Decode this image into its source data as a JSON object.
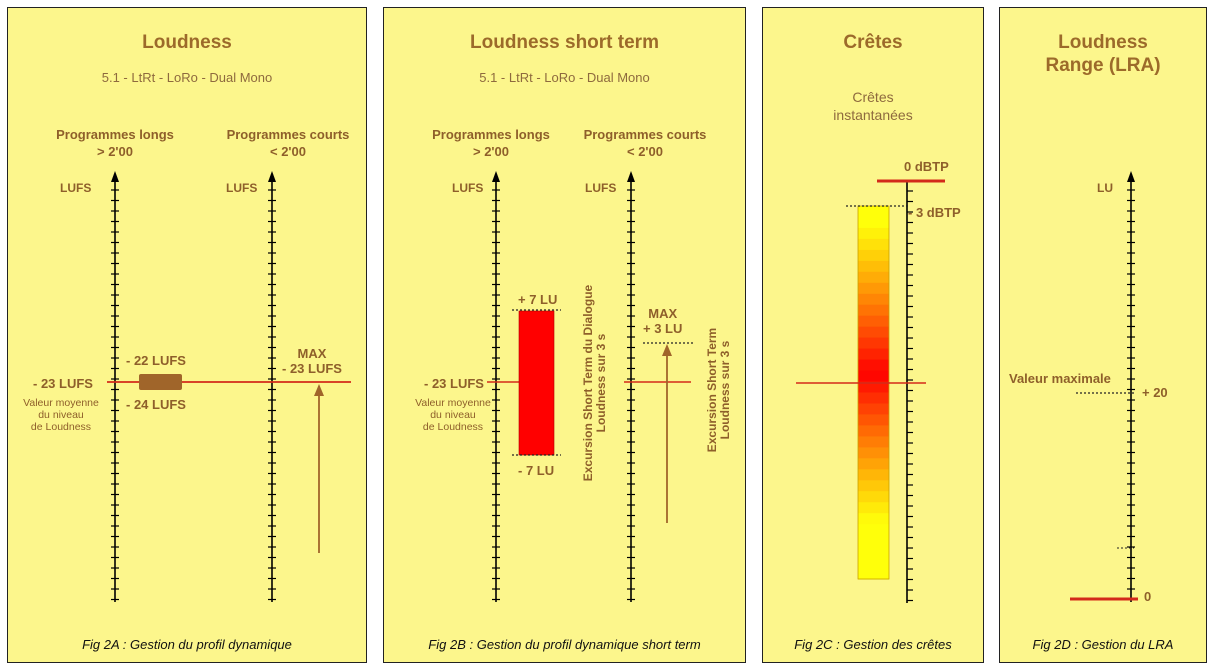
{
  "colors": {
    "panel": "#fcf68c",
    "brown": "#9c6a2a",
    "red": "#e0000e",
    "marker": "#a0652a"
  },
  "fig_a": {
    "title": "Loudness",
    "subtitle": "5.1 - LtRt - LoRo - Dual Mono",
    "col1_header": "Programmes longs\n> 2'00",
    "col2_header": "Programmes courts\n< 2'00",
    "unit1": "LUFS",
    "unit2": "LUFS",
    "target_label": "- 23 LUFS",
    "target_note": "Valeur moyenne\ndu niveau\nde Loudness",
    "upper_label": "- 22 LUFS",
    "lower_label": "- 24 LUFS",
    "max_label": "MAX\n- 23 LUFS",
    "caption": "Fig 2A : Gestion du profil dynamique"
  },
  "fig_b": {
    "title": "Loudness short term",
    "subtitle": "5.1 - LtRt - LoRo - Dual Mono",
    "col1_header": "Programmes longs\n> 2'00",
    "col2_header": "Programmes courts\n< 2'00",
    "unit1": "LUFS",
    "unit2": "LUFS",
    "target_label": "- 23 LUFS",
    "target_note": "Valeur moyenne\ndu niveau\nde Loudness",
    "upper_label": "+ 7 LU",
    "lower_label": "- 7 LU",
    "dialogue_text": "Excursion Short Term du Dialogue\nLoudness sur 3 s",
    "max_label": "MAX\n+ 3 LU",
    "short_text": "Excursion Short Term\nLoudness sur 3 s",
    "caption": "Fig 2B : Gestion du profil dynamique short term"
  },
  "fig_c": {
    "title": "Crêtes",
    "subtitle": "Crêtes\ninstantanées",
    "top_label": "0 dBTP",
    "ref_label": "- 3 dBTP",
    "caption": "Fig 2C : Gestion des crêtes"
  },
  "fig_d": {
    "title": "Loudness\nRange (LRA)",
    "unit": "LU",
    "max_text": "Valeur maximale",
    "max_value": "+ 20",
    "zero_label": "0",
    "caption": "Fig 2D : Gestion du LRA"
  }
}
